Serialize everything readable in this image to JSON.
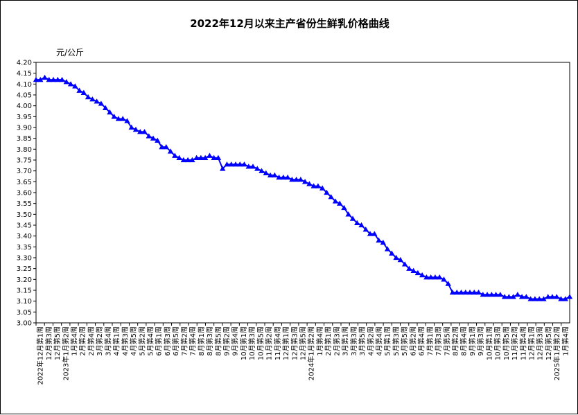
{
  "chart_data": {
    "type": "line",
    "title": "2022年12月以来主产省份生鲜乳价格曲线",
    "ylabel": "元/公斤",
    "ylim": [
      3.0,
      4.2
    ],
    "y_ticks": [
      "4.20",
      "4.15",
      "4.10",
      "4.05",
      "4.00",
      "3.95",
      "3.90",
      "3.85",
      "3.80",
      "3.75",
      "3.70",
      "3.65",
      "3.60",
      "3.55",
      "3.50",
      "3.45",
      "3.40",
      "3.35",
      "3.30",
      "3.25",
      "3.20",
      "3.15",
      "3.10",
      "3.05",
      "3.00"
    ],
    "grid": true,
    "line_color": "#0000ff",
    "x_tick_labels": [
      "2022年12月第1周",
      "12月第3周",
      "12月第5周",
      "2023年1月第2周",
      "1月第4周",
      "2月第2周",
      "2月第4周",
      "3月第2周",
      "3月第4周",
      "4月第1周",
      "4月第3周",
      "4月第5周",
      "5月第2周",
      "5月第4周",
      "6月第1周",
      "6月第3周",
      "6月第5周",
      "7月第2周",
      "7月第4周",
      "8月第1周",
      "8月第3周",
      "8月第5周",
      "9月第2周",
      "9月第4周",
      "10月第1周",
      "10月第3周",
      "10月第5周",
      "11月第2周",
      "11月第4周",
      "12月第1周",
      "12月第3周",
      "12月第5周",
      "2024年1月第2周",
      "1月第4周",
      "2月第1周",
      "2月第3周",
      "3月第1周",
      "3月第3周",
      "3月第5周",
      "4月第2周",
      "4月第4周",
      "5月第1周",
      "5月第3周",
      "5月第5周",
      "6月第2周",
      "6月第4周",
      "7月第1周",
      "7月第3周",
      "7月第5周",
      "8月第2周",
      "8月第4周",
      "9月第1周",
      "9月第3周",
      "10月第1周",
      "10月第3周",
      "10月第5周",
      "11月第2周",
      "11月第4周",
      "12月第1周",
      "12月第3周",
      "12月第5周",
      "2025年1月第2周",
      "1月第4周"
    ],
    "values": [
      4.12,
      4.12,
      4.13,
      4.12,
      4.12,
      4.12,
      4.12,
      4.11,
      4.1,
      4.09,
      4.07,
      4.06,
      4.04,
      4.03,
      4.02,
      4.01,
      3.99,
      3.97,
      3.95,
      3.94,
      3.94,
      3.93,
      3.9,
      3.89,
      3.88,
      3.88,
      3.86,
      3.85,
      3.84,
      3.81,
      3.81,
      3.79,
      3.77,
      3.76,
      3.75,
      3.75,
      3.75,
      3.76,
      3.76,
      3.76,
      3.77,
      3.76,
      3.76,
      3.71,
      3.73,
      3.73,
      3.73,
      3.73,
      3.73,
      3.72,
      3.72,
      3.71,
      3.7,
      3.69,
      3.68,
      3.68,
      3.67,
      3.67,
      3.67,
      3.66,
      3.66,
      3.66,
      3.65,
      3.64,
      3.63,
      3.63,
      3.62,
      3.6,
      3.58,
      3.56,
      3.55,
      3.53,
      3.5,
      3.48,
      3.46,
      3.45,
      3.43,
      3.41,
      3.41,
      3.38,
      3.37,
      3.34,
      3.32,
      3.3,
      3.29,
      3.27,
      3.25,
      3.24,
      3.23,
      3.22,
      3.21,
      3.21,
      3.21,
      3.21,
      3.2,
      3.18,
      3.14,
      3.14,
      3.14,
      3.14,
      3.14,
      3.14,
      3.14,
      3.13,
      3.13,
      3.13,
      3.13,
      3.13,
      3.12,
      3.12,
      3.12,
      3.13,
      3.12,
      3.12,
      3.11,
      3.11,
      3.11,
      3.11,
      3.12,
      3.12,
      3.12,
      3.11,
      3.11,
      3.12
    ]
  }
}
